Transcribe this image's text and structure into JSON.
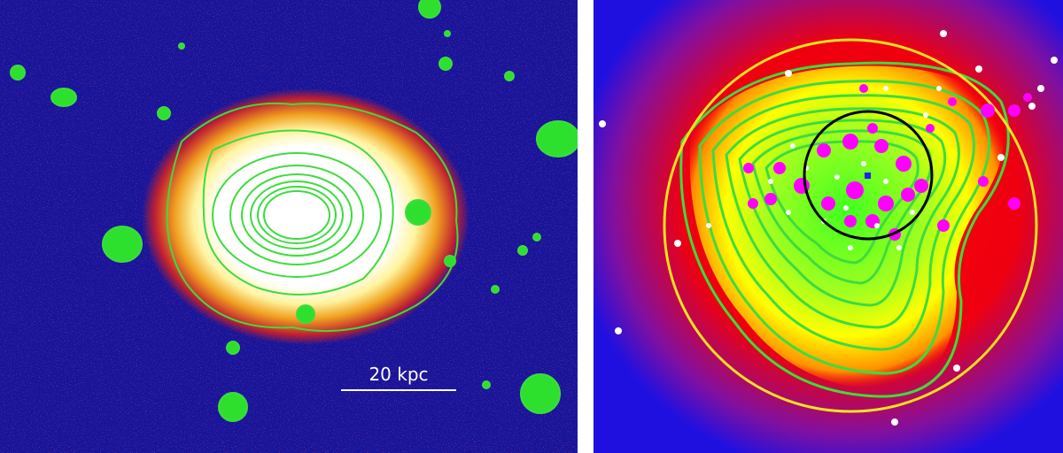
{
  "left_panel": {
    "scale_bar": {
      "label": "20 kpc"
    }
  }
}
